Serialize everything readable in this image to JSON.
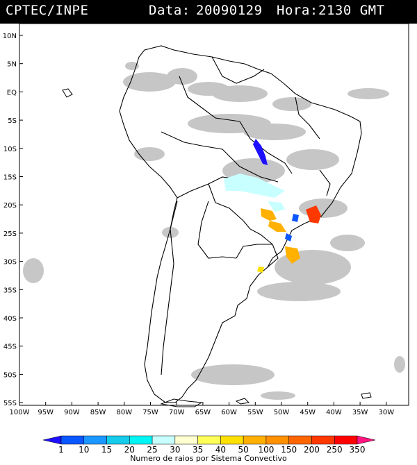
{
  "header": {
    "source": "CPTEC/INPE",
    "date_label": "Data:",
    "date": "20090129",
    "hour_label": "Hora:",
    "hour": "2130 GMT"
  },
  "map": {
    "lon_ticks": [
      "100W",
      "95W",
      "90W",
      "85W",
      "80W",
      "75W",
      "70W",
      "65W",
      "60W",
      "55W",
      "50W",
      "45W",
      "40W",
      "35W",
      "30W"
    ],
    "lat_ticks": [
      "10N",
      "5N",
      "EQ",
      "5S",
      "10S",
      "15S",
      "20S",
      "25S",
      "30S",
      "35S",
      "40S",
      "45S",
      "50S",
      "55S"
    ],
    "colors": {
      "land_outline": "#000000",
      "cloud": "#b8b8b8",
      "ocean": "#ffffff"
    }
  },
  "colorbar": {
    "title": "Numero de raios por Sistema Convectivo",
    "labels": [
      "1",
      "10",
      "15",
      "20",
      "25",
      "30",
      "35",
      "40",
      "50",
      "100",
      "150",
      "200",
      "250",
      "350"
    ],
    "colors": [
      "#1e10ff",
      "#0a56ff",
      "#1a98ff",
      "#16ccec",
      "#00f5f5",
      "#c8ffff",
      "#ffffd0",
      "#ffff5a",
      "#ffe000",
      "#ffb000",
      "#ff9000",
      "#ff6600",
      "#ff3800",
      "#ff0000",
      "#ff1480"
    ]
  }
}
